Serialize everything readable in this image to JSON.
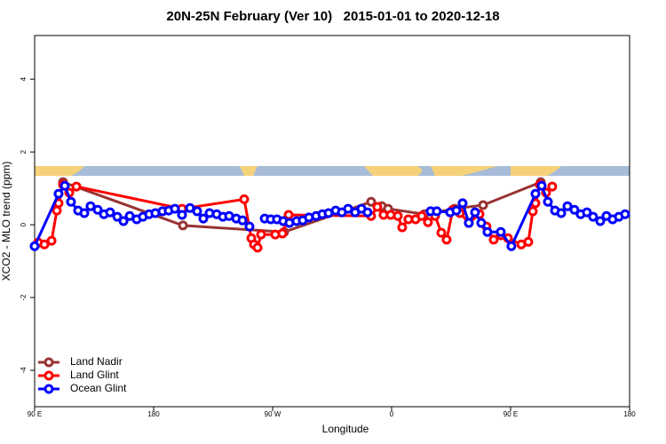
{
  "chart_data": {
    "type": "line",
    "title": "20N-25N February (Ver 10)   2015-01-01 to 2020-12-18",
    "x_label": "Longitude",
    "y_label": "XCO2 - MLO trend (ppm)",
    "xlim": [
      90,
      540
    ],
    "ylim": [
      -5.0,
      5.2
    ],
    "xticks": [
      {
        "value": 90,
        "label": "90 E"
      },
      180,
      {
        "value": 270,
        "label": "90 W"
      },
      {
        "value": 360,
        "label": "0"
      },
      {
        "value": 450,
        "label": "90 E"
      },
      {
        "value": 540,
        "label": "180"
      }
    ],
    "yticks": [
      -4,
      -2,
      0,
      2,
      4
    ],
    "legend": "bottom-left",
    "series": [
      {
        "name": "Land Nadir",
        "color": "#993333",
        "x": [
          111.5,
          202.2,
          278.7,
          344.5,
          352.6,
          357.3,
          384.8,
          407.7,
          429.2,
          472.8
        ],
        "values": [
          1.17,
          -0.02,
          -0.2,
          0.63,
          0.51,
          0.44,
          0.29,
          0.44,
          0.54,
          1.17
        ]
      },
      {
        "name": "Land Glint",
        "color": "#ff0000",
        "x": [
          92.7,
          97.4,
          102.8,
          106.8,
          108.1,
          111.5,
          116.2,
          121.6,
          201.5,
          248.5,
          253.9,
          255.9,
          258.6,
          261.3,
          272,
          277.4,
          282.1,
          344.5,
          349.2,
          353.9,
          359.3,
          364.7,
          368,
          372.7,
          378.1,
          382.8,
          387.5,
          392.9,
          397.6,
          401.6,
          406.3,
          411.7,
          418.4,
          426.5,
          431.8,
          437.2,
          442.6,
          448,
          458.1,
          463.4,
          466.8,
          468.8,
          472.1,
          476.8,
          481.5
        ],
        "values": [
          -0.49,
          -0.54,
          -0.44,
          0.39,
          0.59,
          1.1,
          0.88,
          1.05,
          0.44,
          0.7,
          -0.37,
          -0.54,
          -0.63,
          -0.27,
          -0.27,
          -0.24,
          0.27,
          0.24,
          0.49,
          0.27,
          0.27,
          0.24,
          -0.07,
          0.15,
          0.15,
          0.24,
          0.07,
          0.24,
          -0.22,
          -0.41,
          0.41,
          0.32,
          0.05,
          0.29,
          -0.05,
          -0.41,
          -0.29,
          -0.37,
          -0.54,
          -0.47,
          0.37,
          0.59,
          1.1,
          0.88,
          1.05
        ]
      },
      {
        "name": "Ocean Glint",
        "color": "#0000ff",
        "x": [
          90,
          108.1,
          112.8,
          117.5,
          122.9,
          127.6,
          132.3,
          137.7,
          142.4,
          147.1,
          152.5,
          157.2,
          161.9,
          167.2,
          171.9,
          176.6,
          181.3,
          186.7,
          191.4,
          196.1,
          201.5,
          207.5,
          212.9,
          217.6,
          222.3,
          227.7,
          232.4,
          237.1,
          242.5,
          247.2,
          252.5,
          258,
          264,
          268.6,
          273.3,
          278,
          282.7,
          288.1,
          292.8,
          297.5,
          302.9,
          307.6,
          312.3,
          317.7,
          322.4,
          327.1,
          332.4,
          337.2,
          341.8,
          365,
          389.5,
          394.2,
          404.3,
          409,
          413.7,
          418.4,
          423.1,
          427.8,
          432.5,
          442.6,
          450.6,
          468.8,
          473.5,
          478.2,
          483.6,
          488.3,
          493,
          498.3,
          503,
          507.7,
          512.4,
          517.8,
          522.5,
          527.2,
          531.9,
          536.6
        ],
        "values": [
          -0.59,
          0.85,
          1.07,
          0.63,
          0.39,
          0.32,
          0.51,
          0.41,
          0.29,
          0.34,
          0.22,
          0.1,
          0.24,
          0.15,
          0.22,
          0.29,
          0.32,
          0.37,
          0.39,
          0.44,
          0.27,
          0.46,
          0.37,
          0.17,
          0.32,
          0.29,
          0.22,
          0.24,
          0.17,
          0.12,
          -0.05,
          null,
          0.17,
          0.15,
          0.15,
          0.1,
          0.05,
          0.1,
          0.12,
          0.2,
          0.24,
          0.29,
          0.32,
          0.39,
          0.34,
          0.44,
          0.34,
          0.44,
          0.34,
          null,
          0.37,
          0.37,
          0.34,
          0.39,
          0.59,
          0.05,
          0.34,
          0.05,
          -0.2,
          -0.2,
          -0.59,
          0.85,
          1.07,
          0.63,
          0.39,
          0.32,
          0.51,
          0.41,
          0.29,
          0.34,
          0.22,
          0.1,
          0.24,
          0.15,
          0.22,
          0.29
        ]
      }
    ]
  }
}
